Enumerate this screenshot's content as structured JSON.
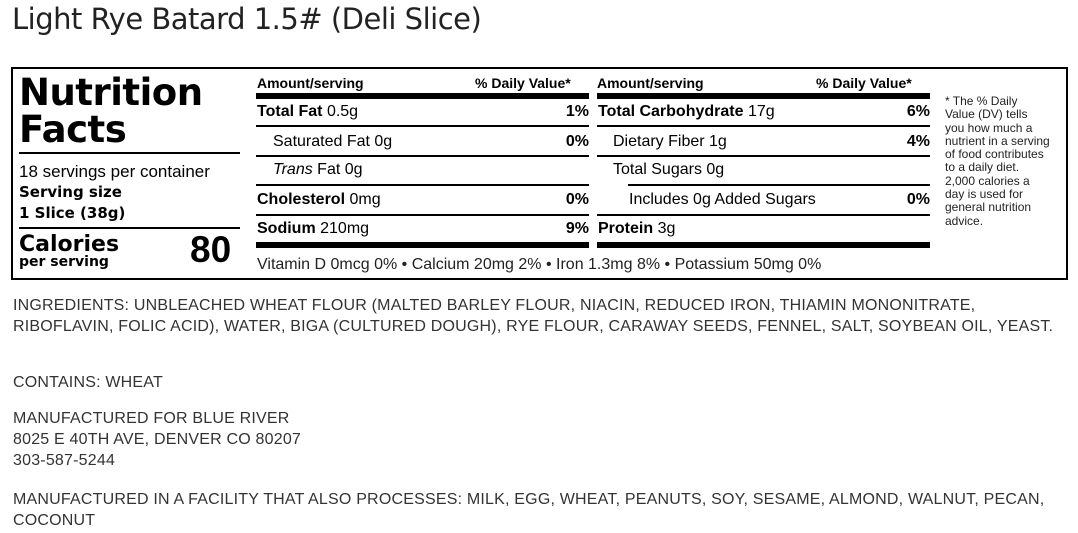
{
  "title": "Light Rye Batard 1.5# (Deli Slice)",
  "label": {
    "heading_line1": "Nutrition",
    "heading_line2": "Facts",
    "servings_per_container": "18 servings per container",
    "serving_size_label": "Serving size",
    "serving_size_value": "1 Slice (38g)",
    "calories_label": "Calories",
    "calories_sub": "per serving",
    "calories_value": "80",
    "amount_header": "Amount/serving",
    "dv_header": "% Daily Value*",
    "left_rows": [
      {
        "name": "Total Fat",
        "amount": "0.5g",
        "dv": "1%"
      },
      {
        "name": "Saturated Fat",
        "amount": "0g",
        "dv": "0%"
      },
      {
        "name": "Trans",
        "suffix": "Fat 0g",
        "dv": ""
      },
      {
        "name": "Cholesterol",
        "amount": "0mg",
        "dv": "0%"
      },
      {
        "name": "Sodium",
        "amount": "210mg",
        "dv": "9%"
      }
    ],
    "right_rows": [
      {
        "name": "Total Carbohydrate",
        "amount": "17g",
        "dv": "6%"
      },
      {
        "name": "Dietary Fiber",
        "amount": "1g",
        "dv": "4%"
      },
      {
        "name": "Total Sugars",
        "amount": "0g",
        "dv": ""
      },
      {
        "name": "Includes 0g Added Sugars",
        "amount": "",
        "dv": "0%"
      },
      {
        "name": "Protein",
        "amount": "3g",
        "dv": ""
      }
    ],
    "vitamins": "Vitamin D 0mcg 0% • Calcium 20mg 2% • Iron 1.3mg 8% • Potassium 50mg 0%",
    "footnote": "* The % Daily Value (DV) tells you how much a nutrient in a serving of food contributes to a daily diet. 2,000 calories a day is used for general nutrition advice."
  },
  "ingredients": "INGREDIENTS: UNBLEACHED WHEAT FLOUR (MALTED BARLEY FLOUR, NIACIN, REDUCED IRON, THIAMIN MONONITRATE, RIBOFLAVIN, FOLIC ACID), WATER, BIGA (CULTURED DOUGH), RYE FLOUR, CARAWAY SEEDS, FENNEL, SALT, SOYBEAN OIL, YEAST.",
  "contains": "CONTAINS: WHEAT",
  "manufacturer": {
    "line1": "MANUFACTURED FOR BLUE RIVER",
    "line2": "8025 E 40TH AVE, DENVER CO 80207",
    "line3": "303-587-5244"
  },
  "allergen_facility": "MANUFACTURED IN A FACILITY THAT ALSO PROCESSES: MILK, EGG, WHEAT, PEANUTS, SOY, SESAME, ALMOND, WALNUT, PECAN, COCONUT"
}
